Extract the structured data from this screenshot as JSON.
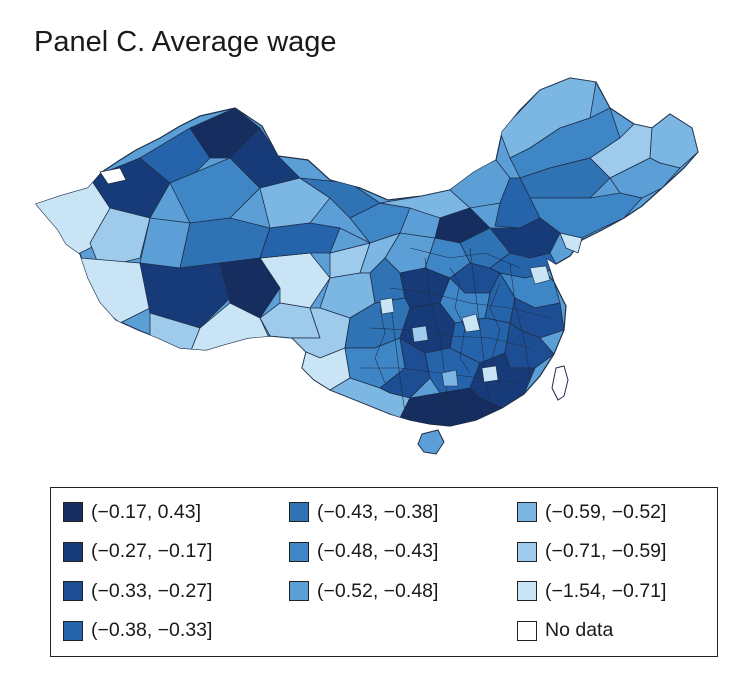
{
  "panel": {
    "title": "Panel C. Average wage"
  },
  "map": {
    "subject": "china-prefecture-choropleth",
    "taiwan_fill": "#ffffff"
  },
  "legend": {
    "columns": [
      [
        {
          "label": "(−0.17, 0.43]",
          "color": "#152d5f"
        },
        {
          "label": "(−0.27, −0.17]",
          "color": "#173b78"
        },
        {
          "label": "(−0.33, −0.27]",
          "color": "#1d4d93"
        },
        {
          "label": "(−0.38, −0.33]",
          "color": "#2563ab"
        }
      ],
      [
        {
          "label": "(−0.43, −0.38]",
          "color": "#2f73b5"
        },
        {
          "label": "(−0.48, −0.43]",
          "color": "#3f86c6"
        },
        {
          "label": "(−0.52, −0.48]",
          "color": "#5b9fd6"
        }
      ],
      [
        {
          "label": "(−0.59, −0.52]",
          "color": "#7cb6e3"
        },
        {
          "label": "(−0.71, −0.59]",
          "color": "#9ecbeb"
        },
        {
          "label": "(−1.54, −0.71]",
          "color": "#c8e4f5"
        },
        {
          "label": "No data",
          "color": "#ffffff"
        }
      ]
    ]
  }
}
